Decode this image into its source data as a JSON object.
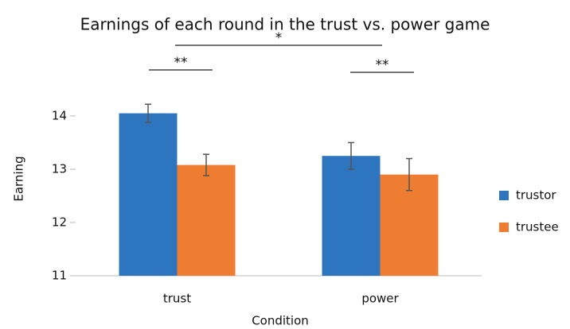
{
  "chart_data": {
    "type": "bar",
    "title": "Earnings of each round in the trust vs. power game",
    "x_label": "Condition",
    "y_label": "Earning",
    "categories": [
      "trust",
      "power"
    ],
    "series": [
      {
        "name": "trustor",
        "color": "#2e75c0",
        "values": [
          14.05,
          13.25
        ],
        "errors": [
          0.17,
          0.25
        ]
      },
      {
        "name": "trustee",
        "color": "#ef7d31",
        "values": [
          13.08,
          12.9
        ],
        "errors": [
          0.2,
          0.3
        ]
      }
    ],
    "ylim": [
      11,
      14.7
    ],
    "yticks": [
      11,
      12,
      13,
      14
    ],
    "legend": "right",
    "annotations": [
      "**",
      "**",
      "*"
    ]
  }
}
